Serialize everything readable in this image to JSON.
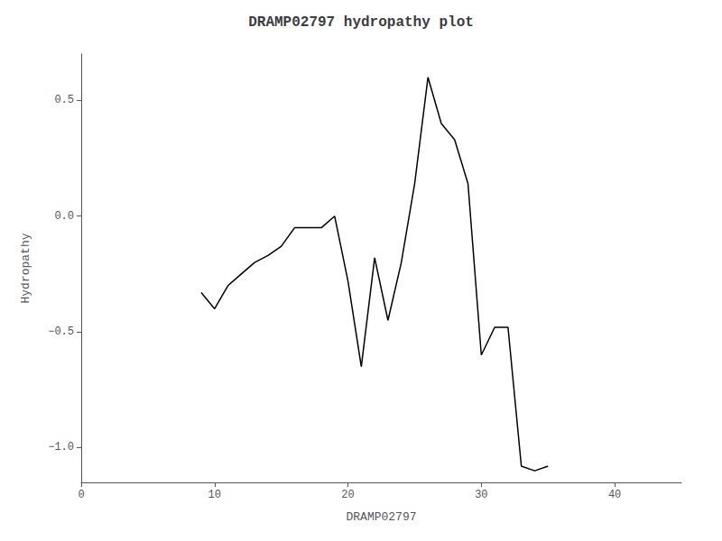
{
  "chart_data": {
    "type": "line",
    "title": "DRAMP02797 hydropathy plot",
    "xlabel": "DRAMP02797",
    "ylabel": "Hydropathy",
    "x": [
      9,
      10,
      11,
      12,
      13,
      14,
      15,
      16,
      17,
      18,
      19,
      20,
      21,
      22,
      23,
      24,
      25,
      26,
      27,
      28,
      29,
      30,
      31,
      32,
      33,
      34,
      35
    ],
    "values": [
      -0.33,
      -0.4,
      -0.3,
      -0.25,
      -0.2,
      -0.17,
      -0.13,
      -0.05,
      -0.05,
      -0.05,
      0.0,
      -0.28,
      -0.65,
      -0.18,
      -0.45,
      -0.2,
      0.14,
      0.6,
      0.4,
      0.33,
      0.14,
      -0.6,
      -0.48,
      -0.48,
      -1.08,
      -1.1,
      -1.08
    ],
    "color": "#000000",
    "xlim": [
      0,
      45
    ],
    "xticks": [
      0,
      10,
      20,
      30,
      40
    ],
    "ylim": [
      -1.15,
      0.7
    ],
    "yticks": [
      {
        "value": -1.0,
        "label": "−1.0"
      },
      {
        "value": -0.5,
        "label": "−0.5"
      },
      {
        "value": 0.0,
        "label": "0.0"
      },
      {
        "value": 0.5,
        "label": "0.5"
      }
    ],
    "grid": false
  }
}
